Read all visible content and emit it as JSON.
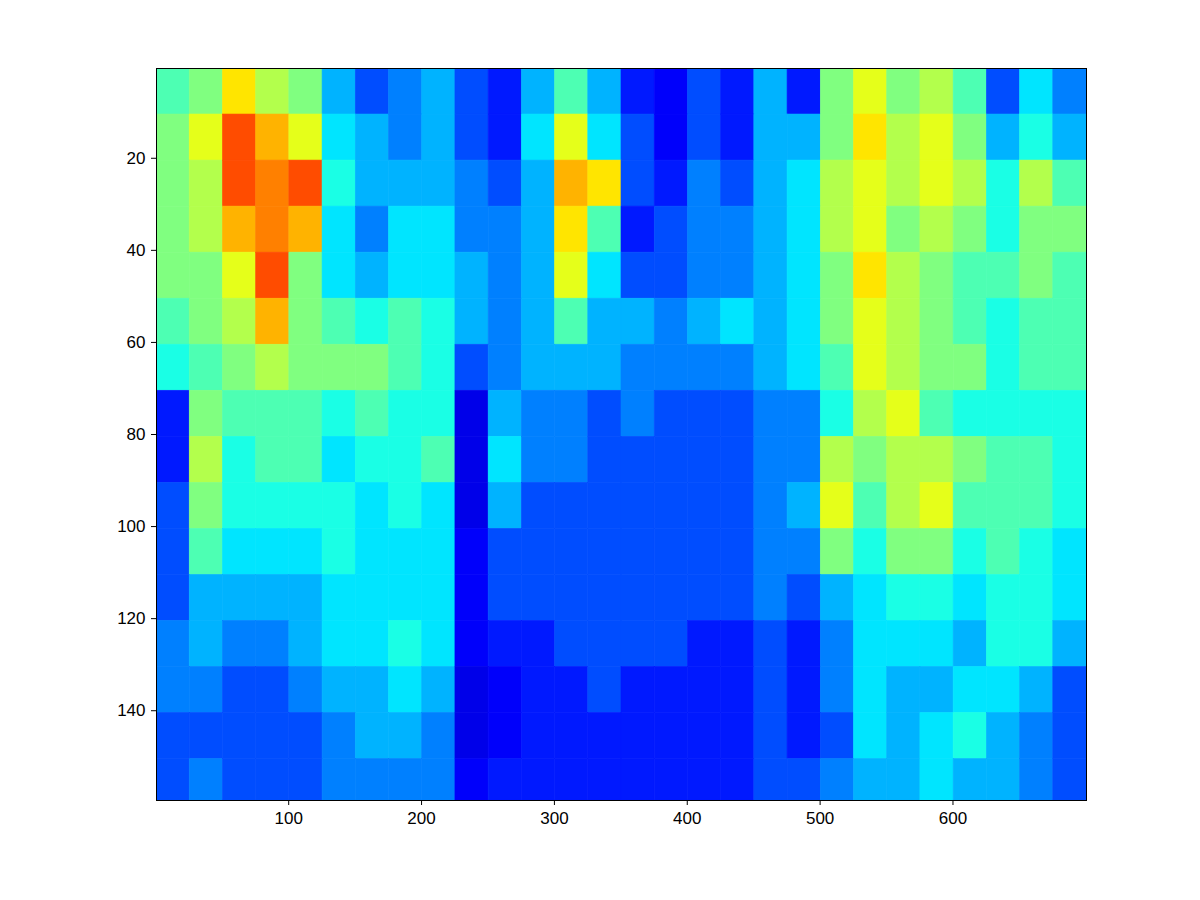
{
  "chart_data": {
    "type": "heatmap",
    "color": "jet",
    "xlim": [
      0.5,
      700.5
    ],
    "xticks": [
      100,
      200,
      300,
      400,
      500,
      600
    ],
    "ylim": [
      0.5,
      159.5
    ],
    "yticks": [
      20,
      40,
      60,
      80,
      100,
      120,
      140
    ],
    "clim": [
      0,
      1
    ],
    "x_bins": [
      0.5,
      25.5,
      50.5,
      75.5,
      100.5,
      125.5,
      150.5,
      175.5,
      200.5,
      225.5,
      250.5,
      275.5,
      300.5,
      325.5,
      350.5,
      375.5,
      400.5,
      425.5,
      450.5,
      475.5,
      500.5,
      525.5,
      550.5,
      575.5,
      600.5,
      625.5,
      650.5,
      675.5,
      700.5
    ],
    "y_bins": [
      0.5,
      10.5,
      20.5,
      30.5,
      40.5,
      50.5,
      60.5,
      70.5,
      80.5,
      90.5,
      100.5,
      110.5,
      120.5,
      130.5,
      140.5,
      150.5,
      159.5
    ],
    "values": [
      [
        0.45,
        0.5,
        0.65,
        0.55,
        0.5,
        0.3,
        0.2,
        0.25,
        0.3,
        0.2,
        0.15,
        0.3,
        0.45,
        0.3,
        0.15,
        0.12,
        0.2,
        0.15,
        0.3,
        0.15,
        0.5,
        0.6,
        0.5,
        0.55,
        0.45,
        0.2,
        0.35,
        0.25
      ],
      [
        0.5,
        0.6,
        0.8,
        0.7,
        0.6,
        0.35,
        0.3,
        0.25,
        0.3,
        0.2,
        0.15,
        0.35,
        0.6,
        0.35,
        0.2,
        0.12,
        0.2,
        0.15,
        0.3,
        0.3,
        0.5,
        0.65,
        0.55,
        0.6,
        0.5,
        0.3,
        0.4,
        0.3
      ],
      [
        0.5,
        0.55,
        0.8,
        0.75,
        0.8,
        0.4,
        0.3,
        0.3,
        0.3,
        0.25,
        0.2,
        0.3,
        0.7,
        0.65,
        0.2,
        0.15,
        0.25,
        0.2,
        0.3,
        0.35,
        0.55,
        0.6,
        0.55,
        0.6,
        0.55,
        0.4,
        0.55,
        0.45
      ],
      [
        0.5,
        0.55,
        0.7,
        0.75,
        0.7,
        0.35,
        0.25,
        0.35,
        0.35,
        0.25,
        0.25,
        0.3,
        0.65,
        0.45,
        0.15,
        0.2,
        0.25,
        0.25,
        0.3,
        0.35,
        0.55,
        0.6,
        0.5,
        0.55,
        0.5,
        0.4,
        0.5,
        0.5
      ],
      [
        0.5,
        0.5,
        0.6,
        0.8,
        0.5,
        0.35,
        0.3,
        0.35,
        0.35,
        0.3,
        0.25,
        0.3,
        0.6,
        0.35,
        0.2,
        0.2,
        0.25,
        0.25,
        0.3,
        0.35,
        0.5,
        0.65,
        0.55,
        0.5,
        0.45,
        0.45,
        0.5,
        0.45
      ],
      [
        0.45,
        0.5,
        0.55,
        0.7,
        0.5,
        0.45,
        0.4,
        0.45,
        0.4,
        0.3,
        0.25,
        0.3,
        0.45,
        0.3,
        0.3,
        0.25,
        0.3,
        0.35,
        0.3,
        0.35,
        0.5,
        0.6,
        0.55,
        0.5,
        0.45,
        0.4,
        0.45,
        0.45
      ],
      [
        0.4,
        0.45,
        0.5,
        0.55,
        0.5,
        0.5,
        0.5,
        0.45,
        0.4,
        0.2,
        0.25,
        0.3,
        0.3,
        0.3,
        0.25,
        0.25,
        0.25,
        0.25,
        0.3,
        0.35,
        0.45,
        0.6,
        0.55,
        0.5,
        0.5,
        0.4,
        0.45,
        0.45
      ],
      [
        0.15,
        0.5,
        0.45,
        0.45,
        0.45,
        0.4,
        0.45,
        0.4,
        0.4,
        0.1,
        0.3,
        0.25,
        0.25,
        0.2,
        0.25,
        0.2,
        0.2,
        0.2,
        0.25,
        0.25,
        0.4,
        0.55,
        0.6,
        0.45,
        0.4,
        0.4,
        0.4,
        0.4
      ],
      [
        0.15,
        0.55,
        0.4,
        0.45,
        0.45,
        0.35,
        0.4,
        0.4,
        0.45,
        0.1,
        0.35,
        0.25,
        0.25,
        0.2,
        0.2,
        0.2,
        0.2,
        0.2,
        0.25,
        0.25,
        0.55,
        0.5,
        0.55,
        0.55,
        0.5,
        0.45,
        0.45,
        0.4
      ],
      [
        0.2,
        0.5,
        0.4,
        0.4,
        0.4,
        0.4,
        0.35,
        0.4,
        0.35,
        0.1,
        0.3,
        0.2,
        0.2,
        0.2,
        0.2,
        0.2,
        0.2,
        0.2,
        0.25,
        0.3,
        0.6,
        0.45,
        0.55,
        0.6,
        0.45,
        0.45,
        0.45,
        0.4
      ],
      [
        0.2,
        0.45,
        0.35,
        0.35,
        0.35,
        0.4,
        0.35,
        0.35,
        0.35,
        0.12,
        0.2,
        0.2,
        0.2,
        0.2,
        0.2,
        0.2,
        0.2,
        0.2,
        0.25,
        0.25,
        0.5,
        0.4,
        0.5,
        0.5,
        0.4,
        0.45,
        0.4,
        0.35
      ],
      [
        0.2,
        0.3,
        0.3,
        0.3,
        0.3,
        0.35,
        0.35,
        0.35,
        0.35,
        0.12,
        0.2,
        0.2,
        0.2,
        0.2,
        0.2,
        0.2,
        0.2,
        0.2,
        0.25,
        0.2,
        0.3,
        0.35,
        0.4,
        0.4,
        0.35,
        0.4,
        0.4,
        0.35
      ],
      [
        0.25,
        0.3,
        0.25,
        0.25,
        0.3,
        0.35,
        0.35,
        0.4,
        0.35,
        0.12,
        0.15,
        0.15,
        0.2,
        0.2,
        0.2,
        0.2,
        0.15,
        0.15,
        0.2,
        0.15,
        0.25,
        0.35,
        0.35,
        0.35,
        0.3,
        0.4,
        0.4,
        0.3
      ],
      [
        0.25,
        0.25,
        0.2,
        0.2,
        0.25,
        0.3,
        0.3,
        0.35,
        0.3,
        0.1,
        0.12,
        0.15,
        0.15,
        0.2,
        0.15,
        0.15,
        0.15,
        0.15,
        0.2,
        0.15,
        0.25,
        0.35,
        0.3,
        0.3,
        0.35,
        0.35,
        0.3,
        0.2
      ],
      [
        0.2,
        0.2,
        0.2,
        0.2,
        0.2,
        0.25,
        0.3,
        0.3,
        0.25,
        0.1,
        0.12,
        0.15,
        0.15,
        0.15,
        0.15,
        0.15,
        0.15,
        0.15,
        0.2,
        0.15,
        0.2,
        0.35,
        0.3,
        0.35,
        0.4,
        0.3,
        0.25,
        0.2
      ],
      [
        0.2,
        0.25,
        0.2,
        0.2,
        0.2,
        0.25,
        0.25,
        0.25,
        0.25,
        0.12,
        0.15,
        0.15,
        0.15,
        0.15,
        0.15,
        0.15,
        0.15,
        0.15,
        0.2,
        0.2,
        0.25,
        0.3,
        0.3,
        0.35,
        0.3,
        0.3,
        0.25,
        0.2
      ]
    ]
  }
}
